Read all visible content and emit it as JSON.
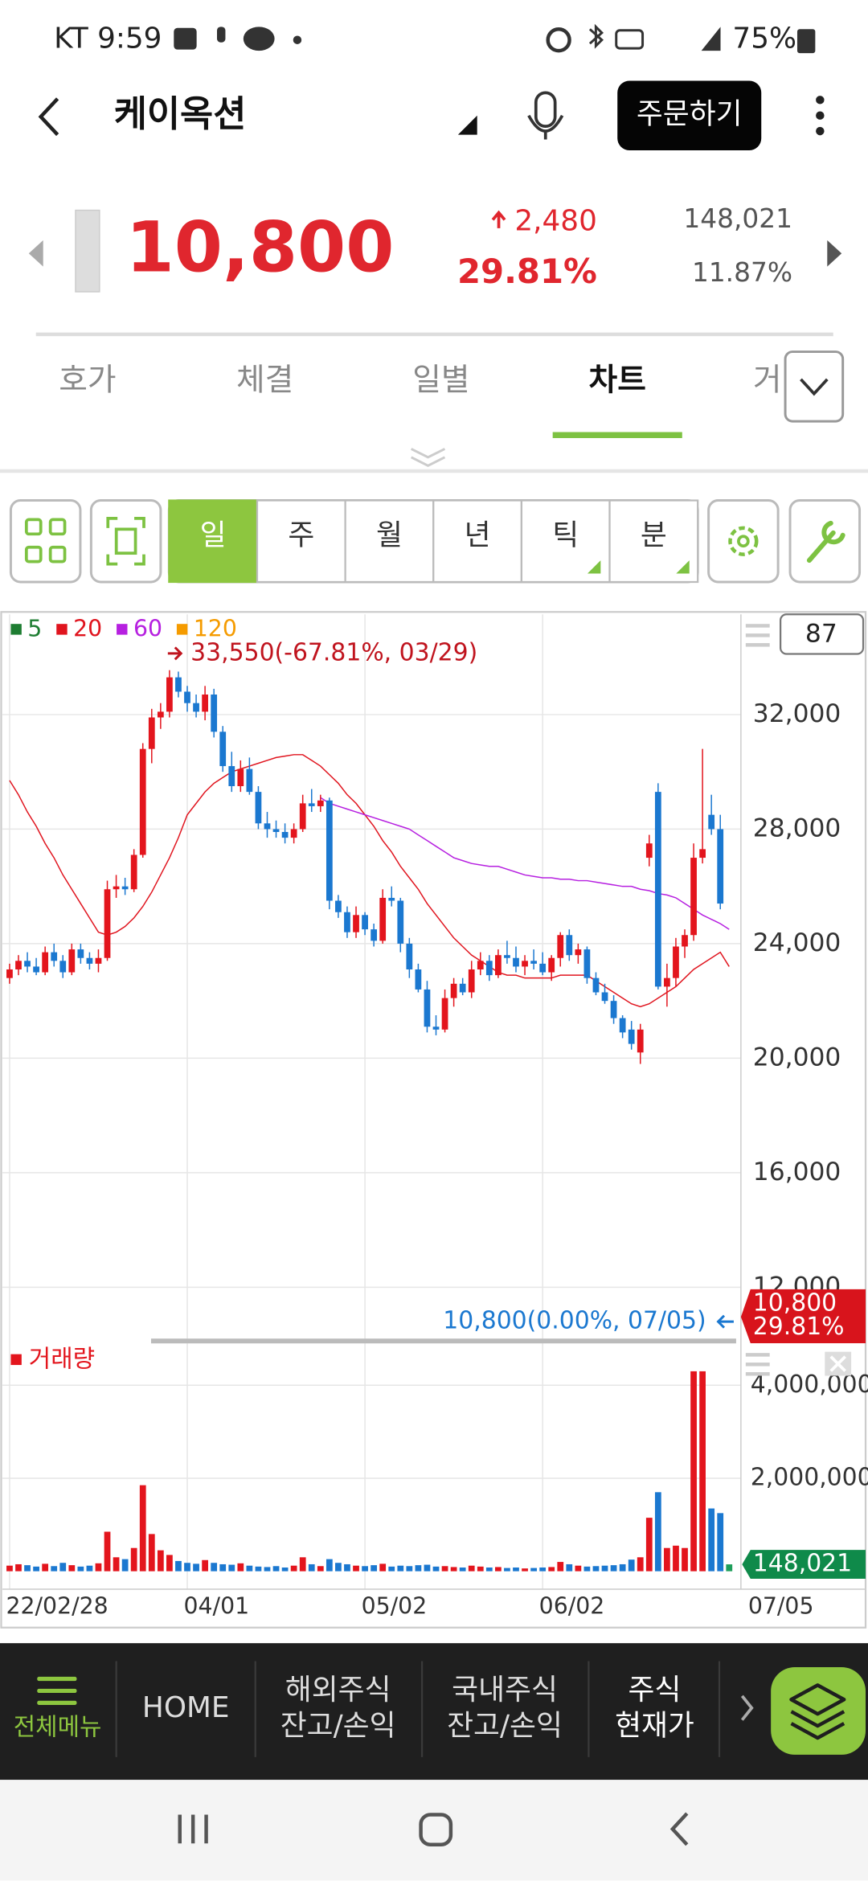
{
  "status_bar": {
    "time": "KT 9:59",
    "battery": "75%"
  },
  "header": {
    "title": "케이옥션",
    "order_button": "주문하기"
  },
  "quote": {
    "price": "10,800",
    "change": "2,480",
    "change_rate": "29.81%",
    "volume": "148,021",
    "volume_ratio": "11.87%"
  },
  "tabs": {
    "items": [
      "호가",
      "체결",
      "일별",
      "차트",
      "거"
    ],
    "active": 3
  },
  "period_buttons": {
    "items": [
      "일",
      "주",
      "월",
      "년",
      "틱",
      "분"
    ],
    "active": 0
  },
  "chart_data": {
    "type": "candlestick",
    "categories": [
      "22/02/28",
      null,
      null,
      null,
      null,
      null,
      null,
      null,
      null,
      null,
      null,
      null,
      null,
      null,
      null,
      null,
      null,
      null,
      null,
      null,
      "04/01",
      null,
      null,
      null,
      null,
      null,
      null,
      null,
      null,
      null,
      null,
      null,
      null,
      null,
      null,
      null,
      null,
      null,
      null,
      null,
      "05/02",
      null,
      null,
      null,
      null,
      null,
      null,
      null,
      null,
      null,
      null,
      null,
      null,
      null,
      null,
      null,
      null,
      null,
      null,
      null,
      "06/02",
      null,
      null,
      null,
      null,
      null,
      null,
      null,
      null,
      null,
      null,
      null,
      null,
      null,
      null,
      null,
      null,
      null,
      null,
      null,
      null,
      "07/05"
    ],
    "open": [
      22800,
      23100,
      23400,
      23200,
      23000,
      23700,
      23400,
      23000,
      23800,
      23500,
      23300,
      23500,
      25900,
      26000,
      25900,
      27100,
      30800,
      31900,
      32100,
      33300,
      32800,
      32400,
      32100,
      32700,
      31400,
      30200,
      29500,
      30100,
      29300,
      28200,
      28000,
      27900,
      27700,
      28000,
      28900,
      28800,
      29000,
      25500,
      25100,
      24400,
      25000,
      24500,
      24100,
      25600,
      25500,
      24000,
      23100,
      22400,
      21100,
      21000,
      22100,
      22600,
      22300,
      23100,
      23400,
      22900,
      23600,
      23500,
      23200,
      23400,
      23300,
      23000,
      23500,
      24300,
      23600,
      23800,
      22800,
      22300,
      22000,
      21400,
      21000,
      20200,
      27000,
      29300,
      22500,
      22800,
      23900,
      24300,
      27000,
      28500,
      28000,
      null
    ],
    "high": [
      23300,
      23600,
      23700,
      23500,
      23900,
      24000,
      23600,
      24000,
      24000,
      23700,
      23800,
      26200,
      26400,
      26300,
      27300,
      31000,
      32200,
      32400,
      33550,
      33500,
      33000,
      32700,
      33000,
      32900,
      31600,
      30700,
      30400,
      30500,
      29500,
      28600,
      28300,
      28200,
      28200,
      29200,
      29400,
      29200,
      29100,
      25700,
      25300,
      25300,
      25100,
      24700,
      25900,
      26000,
      25600,
      24200,
      23300,
      22700,
      21500,
      22400,
      22800,
      22800,
      23400,
      23700,
      23600,
      23800,
      24100,
      23900,
      23600,
      23800,
      23700,
      23600,
      24400,
      24500,
      24000,
      23900,
      23000,
      22600,
      22200,
      21500,
      21300,
      21200,
      27800,
      29600,
      23300,
      24200,
      24500,
      27500,
      30800,
      29200,
      28500,
      null
    ],
    "low": [
      22600,
      22900,
      23000,
      22900,
      22900,
      23200,
      22800,
      22900,
      23300,
      23100,
      23000,
      23400,
      25600,
      25700,
      25800,
      27000,
      30300,
      31500,
      31900,
      32600,
      32100,
      31900,
      31800,
      31200,
      30000,
      29300,
      29300,
      29200,
      28000,
      27700,
      27700,
      27500,
      27500,
      27900,
      28600,
      28600,
      25200,
      24900,
      24200,
      24200,
      24300,
      23900,
      24000,
      25300,
      23700,
      22800,
      22300,
      20900,
      20800,
      20900,
      21800,
      22200,
      22100,
      22900,
      22700,
      22800,
      23300,
      23000,
      22900,
      23100,
      22900,
      22700,
      23200,
      23400,
      23300,
      22600,
      22200,
      21900,
      21200,
      20700,
      20300,
      19800,
      26700,
      22400,
      21800,
      22500,
      23500,
      24100,
      26800,
      27800,
      25200,
      null
    ],
    "close": [
      23100,
      23400,
      23200,
      23000,
      23700,
      23400,
      23000,
      23800,
      23500,
      23300,
      23500,
      25900,
      26000,
      25900,
      27100,
      30800,
      31900,
      32100,
      33300,
      32800,
      32400,
      32100,
      32700,
      31400,
      30200,
      29500,
      30100,
      29300,
      28200,
      28000,
      27900,
      27700,
      28000,
      28900,
      28800,
      29000,
      25500,
      25100,
      24400,
      25000,
      24500,
      24100,
      25600,
      25500,
      24000,
      23100,
      22400,
      21100,
      21000,
      22100,
      22600,
      22300,
      23100,
      23400,
      22900,
      23600,
      23500,
      23200,
      23400,
      23300,
      23000,
      23500,
      24300,
      23600,
      23800,
      22800,
      22300,
      22000,
      21400,
      20900,
      20500,
      21000,
      27500,
      22500,
      22800,
      23900,
      24300,
      27000,
      27300,
      28000,
      25400,
      null
    ],
    "volume": [
      120000,
      150000,
      130000,
      100000,
      160000,
      110000,
      180000,
      130000,
      100000,
      120000,
      170000,
      850000,
      300000,
      260000,
      500000,
      1850000,
      800000,
      450000,
      350000,
      220000,
      180000,
      160000,
      240000,
      180000,
      150000,
      140000,
      170000,
      120000,
      100000,
      90000,
      110000,
      80000,
      120000,
      300000,
      150000,
      110000,
      260000,
      180000,
      150000,
      120000,
      110000,
      130000,
      160000,
      100000,
      120000,
      110000,
      130000,
      140000,
      100000,
      110000,
      90000,
      80000,
      120000,
      100000,
      80000,
      90000,
      70000,
      80000,
      60000,
      70000,
      80000,
      90000,
      200000,
      150000,
      120000,
      100000,
      110000,
      120000,
      130000,
      150000,
      250000,
      300000,
      1150000,
      1700000,
      500000,
      550000,
      500000,
      4300000,
      4300000,
      1350000,
      1250000,
      148021
    ],
    "up_color": "#e3151d",
    "down_color": "#1b78d0",
    "flat_volume_color": "#1e9e5a",
    "ylim": [
      10250,
      35500
    ],
    "yticks": [
      {
        "value": 12000,
        "label": "12,000"
      },
      {
        "value": 16000,
        "label": "16,000"
      },
      {
        "value": 20000,
        "label": "20,000"
      },
      {
        "value": 24000,
        "label": "24,000"
      },
      {
        "value": 28000,
        "label": "28,000"
      },
      {
        "value": 32000,
        "label": "32,000"
      }
    ],
    "volume_ylim": [
      0,
      4900000
    ],
    "volume_yticks": [
      {
        "value": 2000000,
        "label": "2,000,000"
      },
      {
        "value": 4000000,
        "label": "4,000,000"
      }
    ],
    "moving_averages": [
      {
        "name": "5",
        "color": "#1e7d32"
      },
      {
        "name": "20",
        "color": "#e0141e",
        "values": [
          29700,
          29200,
          28600,
          28100,
          27500,
          27000,
          26400,
          25900,
          25400,
          24900,
          24400,
          24300,
          24400,
          24600,
          24900,
          25300,
          25800,
          26400,
          27000,
          27700,
          28500,
          28900,
          29300,
          29600,
          29800,
          30000,
          30100,
          30200,
          30300,
          30400,
          30500,
          30550,
          30600,
          30600,
          30400,
          30200,
          29900,
          29600,
          29200,
          28900,
          28500,
          28100,
          27600,
          27200,
          26700,
          26300,
          25900,
          25400,
          25000,
          24600,
          24200,
          23900,
          23600,
          23400,
          23200,
          23000,
          22900,
          22900,
          22800,
          22800,
          22800,
          22800,
          22900,
          22900,
          22900,
          22900,
          22700,
          22500,
          22300,
          22100,
          21900,
          21800,
          21900,
          22100,
          22300,
          22500,
          22800,
          23100,
          23300,
          23500,
          23700,
          23200
        ]
      },
      {
        "name": "60",
        "color": "#b620e0",
        "values": [
          null,
          null,
          null,
          null,
          null,
          null,
          null,
          null,
          null,
          null,
          null,
          null,
          null,
          null,
          null,
          null,
          null,
          null,
          null,
          null,
          null,
          null,
          null,
          null,
          null,
          null,
          null,
          null,
          null,
          null,
          null,
          null,
          null,
          null,
          null,
          29100,
          28900,
          28800,
          28700,
          28600,
          28500,
          28400,
          28300,
          28200,
          28100,
          28000,
          27800,
          27600,
          27400,
          27200,
          27000,
          26900,
          26800,
          26750,
          26700,
          26700,
          26600,
          26500,
          26400,
          26350,
          26300,
          26300,
          26250,
          26250,
          26200,
          26200,
          26150,
          26100,
          26050,
          26000,
          26000,
          25900,
          25850,
          25750,
          25700,
          25600,
          25400,
          25200,
          25000,
          24850,
          24700,
          24500
        ]
      },
      {
        "name": "120",
        "color": "#f59b00"
      }
    ],
    "volume_label": "거래량",
    "high_annotation": {
      "value": 33550,
      "label": "33,550(-67.81%, 03/29)"
    },
    "last_annotation": {
      "value": 10800,
      "label": "10,800(0.00%, 07/05)"
    },
    "price_tag": {
      "value": 10800,
      "label": "10,800",
      "rate": "29.81%"
    },
    "volume_tag": {
      "value": 148021,
      "label": "148,021"
    },
    "setting_box": "87"
  },
  "bottom_nav": {
    "items": [
      {
        "lines": [
          "전체메뉴"
        ]
      },
      {
        "lines": [
          "HOME"
        ]
      },
      {
        "lines": [
          "해외주식",
          "잔고/손익"
        ]
      },
      {
        "lines": [
          "국내주식",
          "잔고/손익"
        ]
      },
      {
        "lines": [
          "주식",
          "현재가"
        ]
      }
    ]
  }
}
